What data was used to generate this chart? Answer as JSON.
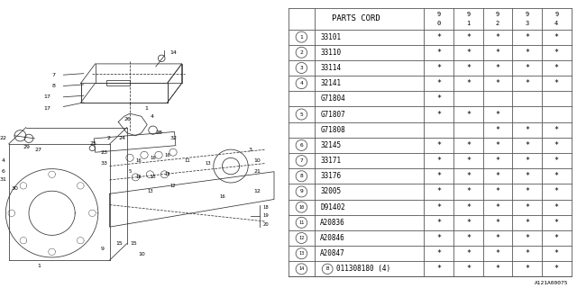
{
  "bg_color": "#ffffff",
  "col_header": "PARTS CORD",
  "year_cols": [
    "9\n0",
    "9\n1",
    "9\n2",
    "9\n3",
    "9\n4"
  ],
  "rows": [
    {
      "num": "1",
      "circle": true,
      "part": "33101",
      "stars": [
        true,
        true,
        true,
        true,
        true
      ],
      "b_circle": false
    },
    {
      "num": "2",
      "circle": true,
      "part": "33110",
      "stars": [
        true,
        true,
        true,
        true,
        true
      ],
      "b_circle": false
    },
    {
      "num": "3",
      "circle": true,
      "part": "33114",
      "stars": [
        true,
        true,
        true,
        true,
        true
      ],
      "b_circle": false
    },
    {
      "num": "4",
      "circle": true,
      "part": "32141",
      "stars": [
        true,
        true,
        true,
        true,
        true
      ],
      "b_circle": false
    },
    {
      "num": "",
      "circle": false,
      "part": "G71804",
      "stars": [
        true,
        false,
        false,
        false,
        false
      ],
      "b_circle": false
    },
    {
      "num": "5",
      "circle": true,
      "part": "G71807",
      "stars": [
        true,
        true,
        true,
        false,
        false
      ],
      "b_circle": false
    },
    {
      "num": "",
      "circle": false,
      "part": "G71808",
      "stars": [
        false,
        false,
        true,
        true,
        true
      ],
      "b_circle": false
    },
    {
      "num": "6",
      "circle": true,
      "part": "32145",
      "stars": [
        true,
        true,
        true,
        true,
        true
      ],
      "b_circle": false
    },
    {
      "num": "7",
      "circle": true,
      "part": "33171",
      "stars": [
        true,
        true,
        true,
        true,
        true
      ],
      "b_circle": false
    },
    {
      "num": "8",
      "circle": true,
      "part": "33176",
      "stars": [
        true,
        true,
        true,
        true,
        true
      ],
      "b_circle": false
    },
    {
      "num": "9",
      "circle": true,
      "part": "32005",
      "stars": [
        true,
        true,
        true,
        true,
        true
      ],
      "b_circle": false
    },
    {
      "num": "10",
      "circle": true,
      "part": "D91402",
      "stars": [
        true,
        true,
        true,
        true,
        true
      ],
      "b_circle": false
    },
    {
      "num": "11",
      "circle": true,
      "part": "A20836",
      "stars": [
        true,
        true,
        true,
        true,
        true
      ],
      "b_circle": false
    },
    {
      "num": "12",
      "circle": true,
      "part": "A20846",
      "stars": [
        true,
        true,
        true,
        true,
        true
      ],
      "b_circle": false
    },
    {
      "num": "13",
      "circle": true,
      "part": "A20847",
      "stars": [
        true,
        true,
        true,
        true,
        true
      ],
      "b_circle": false
    },
    {
      "num": "14",
      "circle": true,
      "part": "011308180 (4)",
      "stars": [
        true,
        true,
        true,
        true,
        true
      ],
      "b_circle": true
    }
  ],
  "footer": "A121A00075",
  "line_color": "#555555",
  "text_color": "#000000",
  "star_char": "*",
  "draw_color": "#333333"
}
